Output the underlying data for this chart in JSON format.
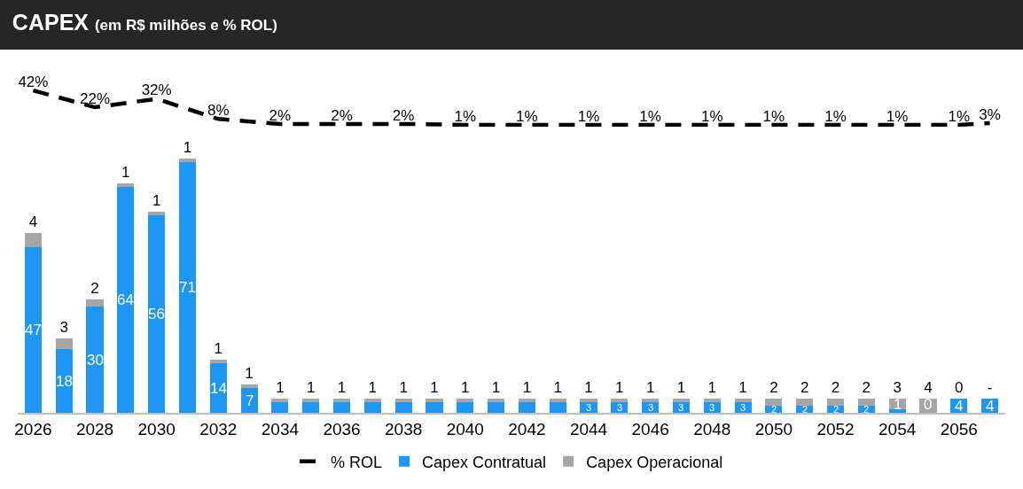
{
  "chart_data": [
    {
      "type": "line",
      "title": "CAPEX",
      "subtitle": "(em R$ milhões e % ROL)",
      "categories": [
        "2026",
        null,
        "2028",
        null,
        "2030",
        null,
        "2032",
        null,
        "2034",
        null,
        "2036",
        null,
        "2038",
        null,
        "2040",
        null,
        "2042",
        null,
        "2044",
        null,
        "2046",
        null,
        "2048",
        null,
        "2050",
        null,
        "2052",
        null,
        "2054",
        null,
        "2056",
        null
      ],
      "tick_labels": false,
      "legend": "bottom",
      "line_style": "dashed",
      "marker": "none",
      "series": [
        {
          "name": "% ROL",
          "color": "#000000",
          "values": [
            42,
            null,
            22,
            null,
            32,
            null,
            8,
            null,
            2,
            null,
            2,
            null,
            2,
            null,
            1,
            null,
            1,
            null,
            1,
            null,
            1,
            null,
            1,
            null,
            1,
            null,
            1,
            null,
            1,
            null,
            1,
            3
          ],
          "value_labels": [
            "42%",
            null,
            "22%",
            null,
            "32%",
            null,
            "8%",
            null,
            "2%",
            null,
            "2%",
            null,
            "2%",
            null,
            "1%",
            null,
            "1%",
            null,
            "1%",
            null,
            "1%",
            null,
            "1%",
            null,
            "1%",
            null,
            "1%",
            null,
            "1%",
            null,
            "1%",
            "3%"
          ]
        }
      ]
    },
    {
      "type": "bar",
      "categories": [
        "2026",
        null,
        "2028",
        null,
        "2030",
        null,
        "2032",
        null,
        "2034",
        null,
        "2036",
        null,
        "2038",
        null,
        "2040",
        null,
        "2042",
        null,
        "2044",
        null,
        "2046",
        null,
        "2048",
        null,
        "2050",
        null,
        "2052",
        null,
        "2054",
        null,
        "2056",
        null
      ],
      "stacked": true,
      "tick_labels": "x",
      "legend": "bottom",
      "series": [
        {
          "name": "Capex Contratual",
          "color": "#1e96f5",
          "values": [
            47,
            18,
            30,
            64,
            56,
            71,
            14,
            7,
            3,
            3,
            3,
            3,
            3,
            3,
            3,
            3,
            3,
            3,
            3,
            3,
            3,
            3,
            3,
            3,
            2,
            2,
            2,
            2,
            1,
            0,
            4,
            4
          ],
          "value_labels": [
            "47",
            "18",
            "30",
            "64",
            "56",
            "71",
            "14",
            "7",
            null,
            null,
            null,
            null,
            null,
            null,
            null,
            null,
            null,
            null,
            "3",
            "3",
            "3",
            "3",
            "3",
            "3",
            "2",
            "2",
            "2",
            "2",
            "1",
            "0",
            "4",
            "4"
          ]
        },
        {
          "name": "Capex Operacional",
          "color": "#a6a6a6",
          "values": [
            4,
            3,
            2,
            1,
            1,
            1,
            1,
            1,
            1,
            1,
            1,
            1,
            1,
            1,
            1,
            1,
            1,
            1,
            1,
            1,
            1,
            1,
            1,
            1,
            2,
            2,
            2,
            2,
            3,
            4,
            0,
            0
          ],
          "value_labels": [
            "4",
            "3",
            "2",
            "1",
            "1",
            "1",
            "1",
            "1",
            "1",
            "1",
            "1",
            "1",
            "1",
            "1",
            "1",
            "1",
            "1",
            "1",
            "1",
            "1",
            "1",
            "1",
            "1",
            "1",
            "2",
            "2",
            "2",
            "2",
            "3",
            "4",
            "0",
            "-"
          ]
        }
      ]
    }
  ]
}
